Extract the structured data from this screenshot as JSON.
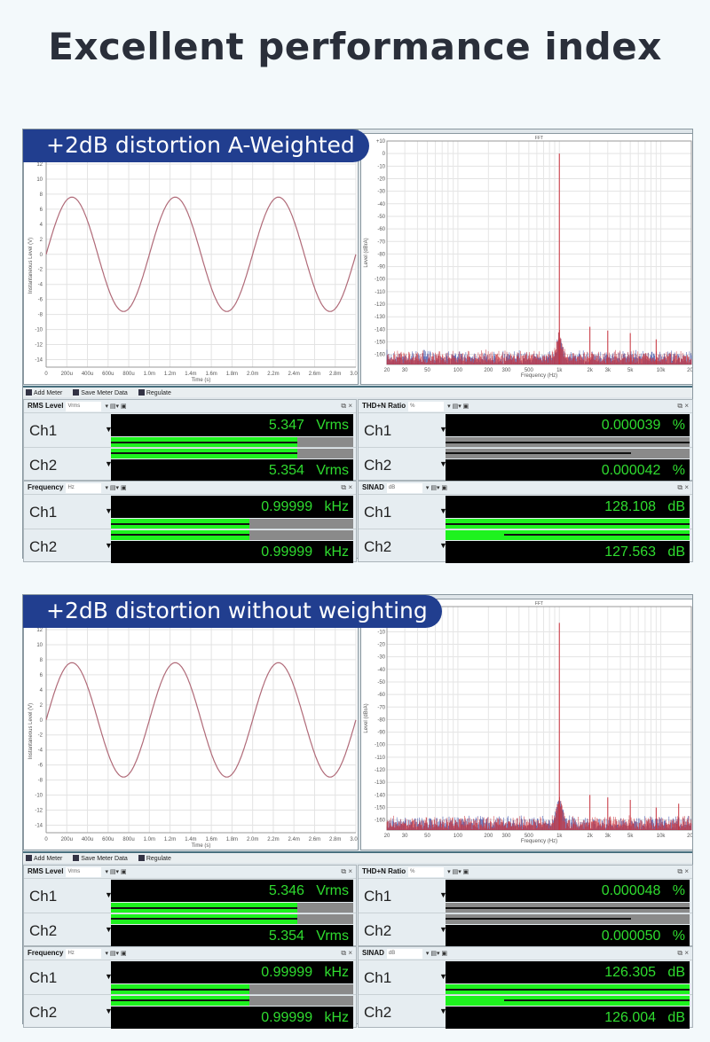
{
  "page_title": "Excellent performance index",
  "colors": {
    "banner": "#213e8f",
    "meter_text": "#2fdc2f",
    "bar_fill": "#1ef21e",
    "wave": "#b06a78",
    "fft_ch1": "#3a4ea8",
    "fft_ch2": "#c8323c"
  },
  "toolbar": {
    "add_meter": "Add Meter",
    "save_meter_data": "Save Meter Data",
    "regulate": "Regulate"
  },
  "channels": [
    "Ch1",
    "Ch2"
  ],
  "panels": [
    {
      "banner": "+2dB distortion A-Weighted",
      "meters": [
        {
          "name": "RMS Level",
          "unit_select": "Vrms",
          "rows": [
            {
              "value": "5.347",
              "unit": "Vrms",
              "bar": 0.77
            },
            {
              "value": "5.354",
              "unit": "Vrms",
              "bar": 0.77
            }
          ]
        },
        {
          "name": "Frequency",
          "unit_select": "Hz",
          "rows": [
            {
              "value": "0.99999",
              "unit": "kHz",
              "bar": 0.57
            },
            {
              "value": "0.99999",
              "unit": "kHz",
              "bar": 0.57
            }
          ]
        },
        {
          "name": "THD+N Ratio",
          "unit_select": "%",
          "rows": [
            {
              "value": "0.000039",
              "unit": "%",
              "bar": 0
            },
            {
              "value": "0.000042",
              "unit": "%",
              "bar": 0
            }
          ]
        },
        {
          "name": "SINAD",
          "unit_select": "dB",
          "rows": [
            {
              "value": "128.108",
              "unit": "dB",
              "bar": 1
            },
            {
              "value": "127.563",
              "unit": "dB",
              "bar": 1
            }
          ]
        }
      ]
    },
    {
      "banner": "+2dB distortion without weighting",
      "meters": [
        {
          "name": "RMS Level",
          "unit_select": "Vrms",
          "rows": [
            {
              "value": "5.346",
              "unit": "Vrms",
              "bar": 0.77
            },
            {
              "value": "5.354",
              "unit": "Vrms",
              "bar": 0.77
            }
          ]
        },
        {
          "name": "Frequency",
          "unit_select": "Hz",
          "rows": [
            {
              "value": "0.99999",
              "unit": "kHz",
              "bar": 0.57
            },
            {
              "value": "0.99999",
              "unit": "kHz",
              "bar": 0.57
            }
          ]
        },
        {
          "name": "THD+N Ratio",
          "unit_select": "%",
          "rows": [
            {
              "value": "0.000048",
              "unit": "%",
              "bar": 0
            },
            {
              "value": "0.000050",
              "unit": "%",
              "bar": 0
            }
          ]
        },
        {
          "name": "SINAD",
          "unit_select": "dB",
          "rows": [
            {
              "value": "126.305",
              "unit": "dB",
              "bar": 1
            },
            {
              "value": "126.004",
              "unit": "dB",
              "bar": 1
            }
          ]
        }
      ]
    }
  ],
  "chart_data": [
    {
      "type": "line",
      "xlabel": "Time (s)",
      "ylabel": "Instantaneous Level (V)",
      "xlim": [
        0,
        0.003
      ],
      "ylim": [
        -15,
        12
      ],
      "xticks": [
        "0",
        "200u",
        "400u",
        "600u",
        "800u",
        "1.0m",
        "1.2m",
        "1.4m",
        "1.6m",
        "1.8m",
        "2.0m",
        "2.2m",
        "2.4m",
        "2.6m",
        "2.8m",
        "3.0m"
      ],
      "yticks": [
        "12",
        "10",
        "8",
        "6",
        "4",
        "2",
        "0",
        "-2",
        "-4",
        "-6",
        "-8",
        "-10",
        "-12",
        "-14"
      ],
      "series": [
        {
          "waveform": "sine",
          "amplitude": 7.6,
          "frequency_hz": 1000
        }
      ],
      "grid": true
    },
    {
      "type": "line",
      "title": "FFT",
      "xlabel": "Frequency (Hz)",
      "ylabel": "Level (dBrA)",
      "xscale": "log",
      "xlim": [
        20,
        20000
      ],
      "ylim": [
        -168,
        10
      ],
      "xticks": [
        "20",
        "30",
        "50",
        "100",
        "200",
        "300",
        "500",
        "1k",
        "2k",
        "3k",
        "5k",
        "10k",
        "20k"
      ],
      "yticks": [
        "+10",
        "0",
        "-10",
        "-20",
        "-30",
        "-40",
        "-50",
        "-60",
        "-70",
        "-80",
        "-90",
        "-100",
        "-110",
        "-120",
        "-130",
        "-140",
        "-150",
        "-160"
      ],
      "peaks": [
        {
          "x": 1000,
          "y": 0
        },
        {
          "x": 2000,
          "y": -138
        },
        {
          "x": 3000,
          "y": -141
        },
        {
          "x": 5000,
          "y": -143
        },
        {
          "x": 9000,
          "y": -148
        }
      ],
      "noise_floor": -160,
      "grid": true
    },
    {
      "type": "line",
      "xlabel": "Time (s)",
      "ylabel": "Instantaneous Level (V)",
      "xlim": [
        0,
        0.003
      ],
      "ylim": [
        -15,
        12
      ],
      "xticks": [
        "0",
        "200u",
        "400u",
        "600u",
        "800u",
        "1.0m",
        "1.2m",
        "1.4m",
        "1.6m",
        "1.8m",
        "2.0m",
        "2.2m",
        "2.4m",
        "2.6m",
        "2.8m",
        "3.0m"
      ],
      "yticks": [
        "12",
        "10",
        "8",
        "6",
        "4",
        "2",
        "0",
        "-2",
        "-4",
        "-6",
        "-8",
        "-10",
        "-12",
        "-14"
      ],
      "series": [
        {
          "waveform": "sine",
          "amplitude": 7.6,
          "frequency_hz": 1000
        }
      ],
      "grid": true
    },
    {
      "type": "line",
      "title": "FFT",
      "xlabel": "Frequency (Hz)",
      "ylabel": "Level (dBrA)",
      "xscale": "log",
      "xlim": [
        20,
        20000
      ],
      "ylim": [
        -168,
        0
      ],
      "xticks": [
        "20",
        "30",
        "50",
        "100",
        "200",
        "300",
        "500",
        "1k",
        "2k",
        "3k",
        "5k",
        "10k",
        "20k"
      ],
      "yticks": [
        "-10",
        "-20",
        "-30",
        "-40",
        "-50",
        "-60",
        "-70",
        "-80",
        "-90",
        "-100",
        "-110",
        "-120",
        "-130",
        "-140",
        "-150",
        "-160"
      ],
      "peaks": [
        {
          "x": 1000,
          "y": -3
        },
        {
          "x": 2000,
          "y": -140
        },
        {
          "x": 3000,
          "y": -142
        },
        {
          "x": 5000,
          "y": -144
        },
        {
          "x": 9000,
          "y": -150
        },
        {
          "x": 15000,
          "y": -147
        }
      ],
      "noise_floor": -160,
      "grid": true
    }
  ]
}
